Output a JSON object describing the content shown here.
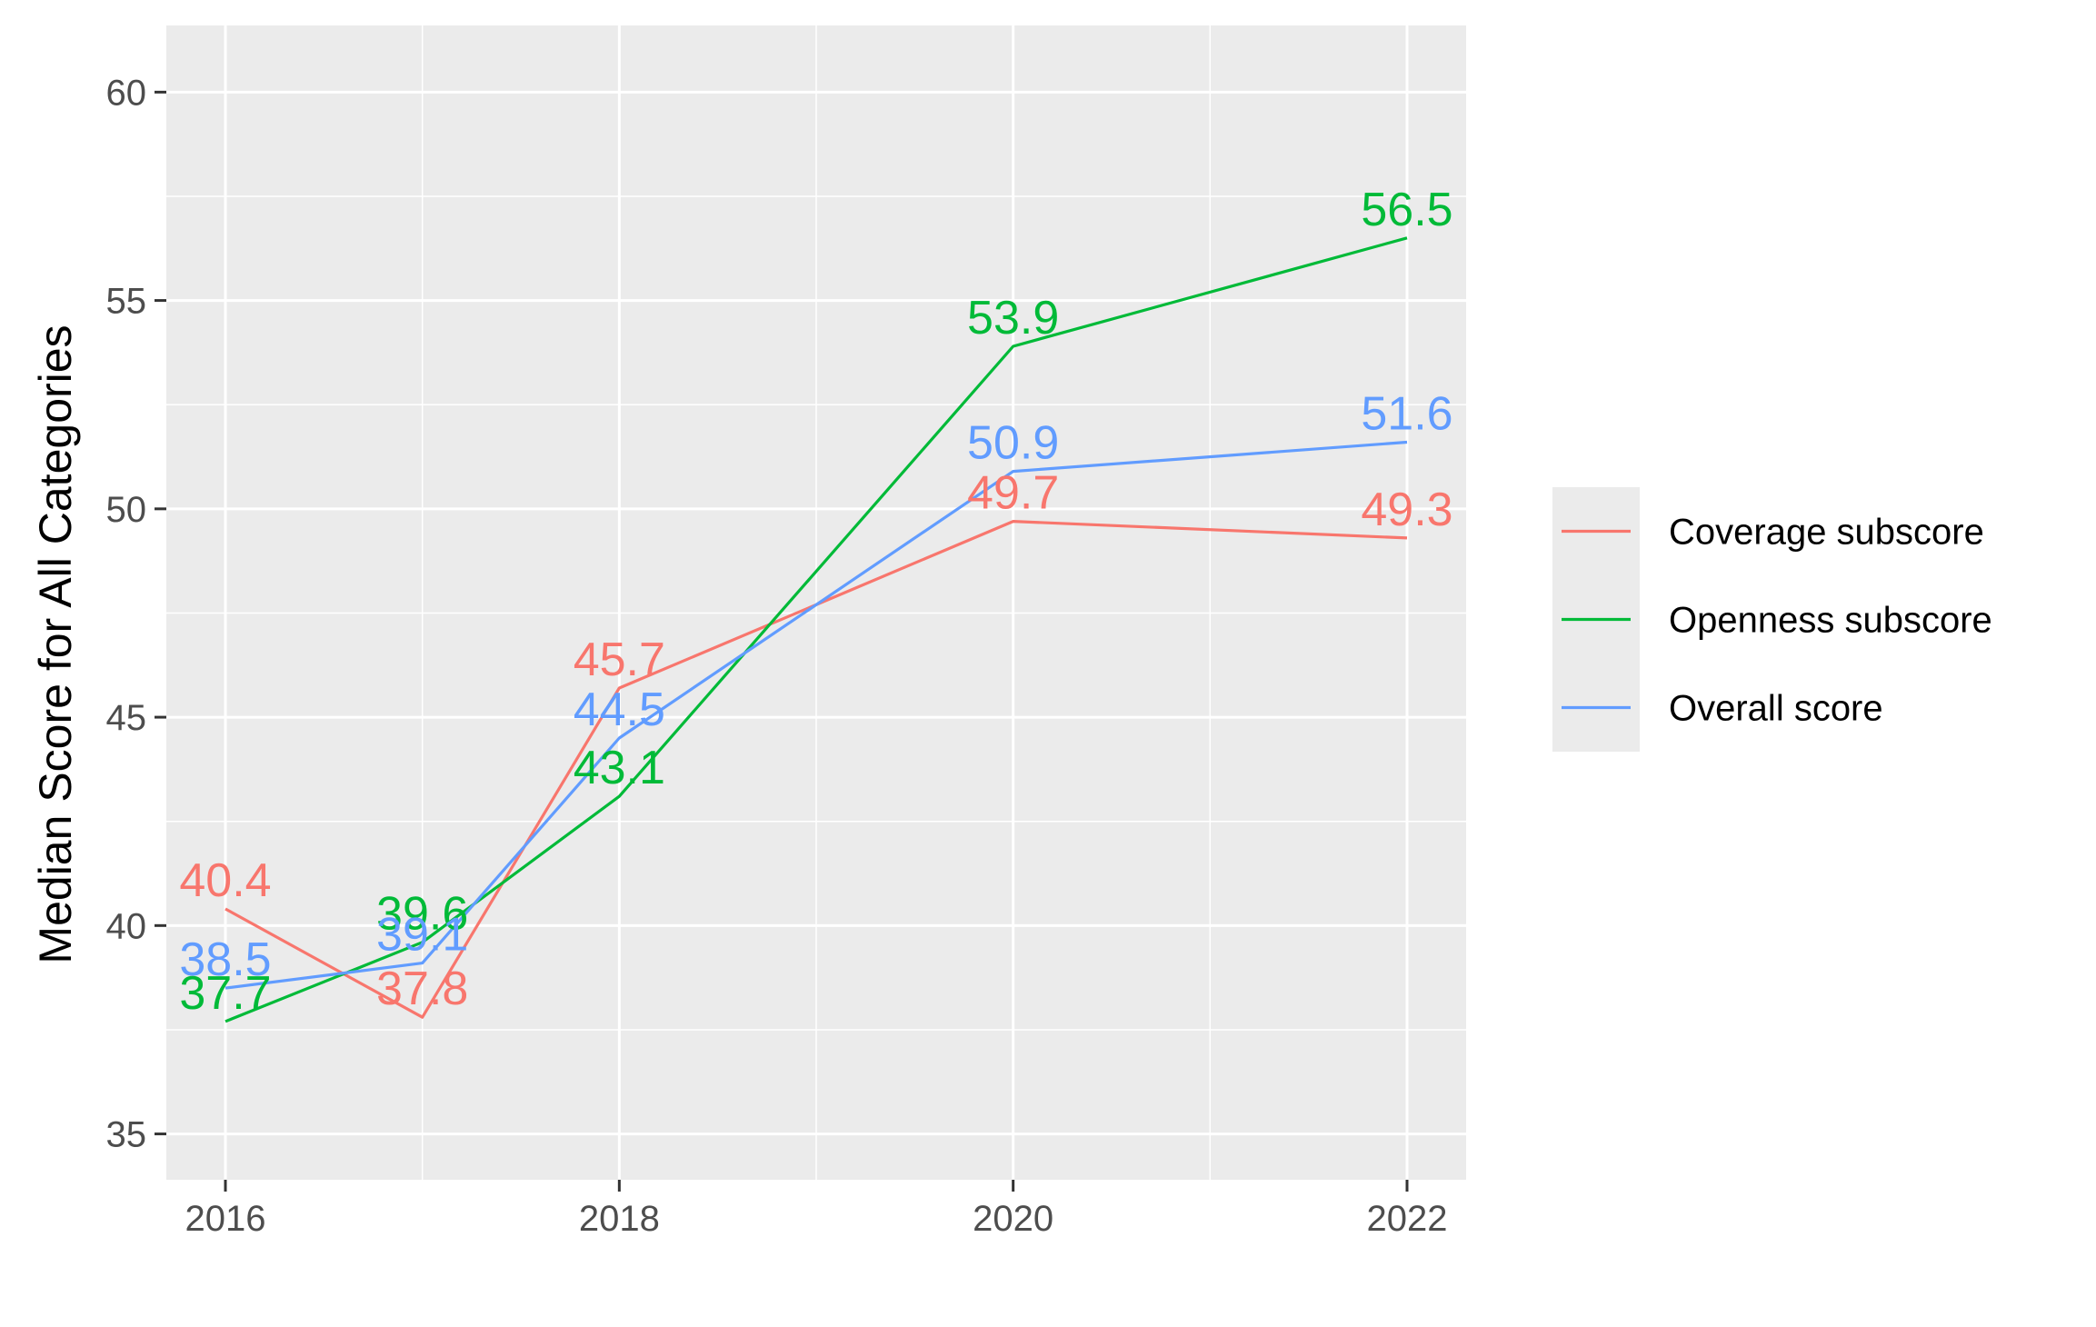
{
  "chart_data": {
    "type": "line",
    "title": "",
    "xlabel": "",
    "ylabel": "Median Score for All Categories",
    "x_ticks": [
      "2016",
      "2018",
      "2020",
      "2022"
    ],
    "y_ticks": [
      "35",
      "40",
      "45",
      "50",
      "55",
      "60"
    ],
    "xlim": [
      2015.7,
      2022.3
    ],
    "ylim": [
      33.9,
      61.6
    ],
    "grid": true,
    "legend_position": "right",
    "colors": {
      "panel_background": "#EBEBEB",
      "grid": "#FFFFFF",
      "tick_mark": "#333333",
      "tick_text": "#4D4D4D"
    },
    "series": [
      {
        "name": "Coverage subscore",
        "color": "#F8766D",
        "x": [
          2016,
          2017,
          2018,
          2020,
          2022
        ],
        "values": [
          40.4,
          37.8,
          45.7,
          49.7,
          49.3
        ],
        "labels": [
          "40.4",
          "37.8",
          "45.7",
          "49.7",
          "49.3"
        ]
      },
      {
        "name": "Openness subscore",
        "color": "#00BA38",
        "x": [
          2016,
          2017,
          2018,
          2020,
          2022
        ],
        "values": [
          37.7,
          39.6,
          43.1,
          53.9,
          56.5
        ],
        "labels": [
          "37.7",
          "39.6",
          "43.1",
          "53.9",
          "56.5"
        ]
      },
      {
        "name": "Overall score",
        "color": "#619CFF",
        "x": [
          2016,
          2017,
          2018,
          2020,
          2022
        ],
        "values": [
          38.5,
          39.1,
          44.5,
          50.9,
          51.6
        ],
        "labels": [
          "38.5",
          "39.1",
          "44.5",
          "50.9",
          "51.6"
        ]
      }
    ]
  }
}
